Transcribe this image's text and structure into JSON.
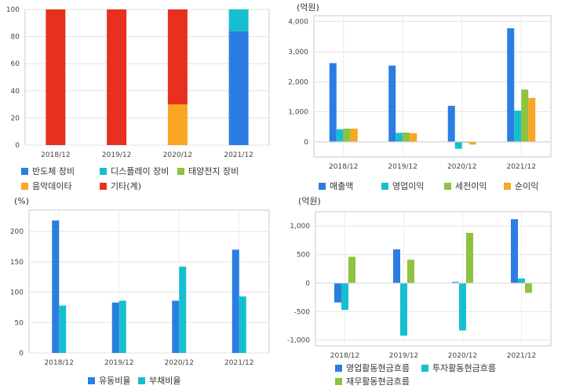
{
  "chart_data": [
    {
      "type": "bar",
      "stacked": true,
      "categories": [
        "2018/12",
        "2019/12",
        "2020/12",
        "2021/12"
      ],
      "ylim": [
        0,
        100
      ],
      "yticks": [
        0,
        20,
        40,
        60,
        80,
        100
      ],
      "unit_label": "",
      "series": [
        {
          "name": "반도체 장비",
          "color": "#2b7de1",
          "values": [
            0,
            0,
            0,
            84
          ]
        },
        {
          "name": "디스플레이 장비",
          "color": "#16bfd0",
          "values": [
            0,
            0,
            0,
            16
          ]
        },
        {
          "name": "태양전지 장비",
          "color": "#8fc23f",
          "values": [
            0,
            0,
            0,
            0
          ]
        },
        {
          "name": "음악데이타",
          "color": "#f8a624",
          "values": [
            0,
            0,
            30,
            0
          ]
        },
        {
          "name": "기타(계)",
          "color": "#e8301f",
          "values": [
            100,
            100,
            70,
            0
          ]
        }
      ],
      "grid": true
    },
    {
      "type": "bar",
      "categories": [
        "2018/12",
        "2019/12",
        "2020/12",
        "2021/12"
      ],
      "ylim": [
        -500,
        4200
      ],
      "yticks": [
        0,
        1000,
        2000,
        3000,
        4000
      ],
      "ytick_labels": [
        "0",
        "1,000",
        "2,000",
        "3,000",
        "4,000"
      ],
      "unit_label": "(억원)",
      "series": [
        {
          "name": "매출액",
          "color": "#2b7de1",
          "values": [
            2620,
            2540,
            1200,
            3780
          ]
        },
        {
          "name": "영업이익",
          "color": "#16bfd0",
          "values": [
            420,
            300,
            -230,
            1040
          ]
        },
        {
          "name": "세전이익",
          "color": "#8fc23f",
          "values": [
            440,
            310,
            -30,
            1740
          ]
        },
        {
          "name": "순이익",
          "color": "#f8a624",
          "values": [
            440,
            290,
            -90,
            1460
          ]
        }
      ],
      "grid": true
    },
    {
      "type": "bar",
      "categories": [
        "2018/12",
        "2019/12",
        "2020/12",
        "2021/12"
      ],
      "ylim": [
        0,
        235
      ],
      "yticks": [
        0,
        50,
        100,
        150,
        200
      ],
      "unit_label": "(%)",
      "series": [
        {
          "name": "유동비율",
          "color": "#2b7de1",
          "values": [
            218,
            83,
            86,
            170
          ]
        },
        {
          "name": "부채비율",
          "color": "#16bfd0",
          "values": [
            78,
            86,
            142,
            93
          ]
        }
      ],
      "grid": true
    },
    {
      "type": "bar",
      "categories": [
        "2018/12",
        "2019/12",
        "2020/12",
        "2021/12"
      ],
      "ylim": [
        -1100,
        1250
      ],
      "yticks": [
        -1000,
        -500,
        0,
        500,
        1000
      ],
      "ytick_labels": [
        "-1,000",
        "-500",
        "0",
        "500",
        "1,000"
      ],
      "unit_label": "(억원)",
      "series": [
        {
          "name": "영업활동현금흐름",
          "color": "#2b7de1",
          "values": [
            -340,
            590,
            20,
            1120
          ]
        },
        {
          "name": "투자활동현금흐름",
          "color": "#16bfd0",
          "values": [
            -470,
            -920,
            -830,
            80
          ]
        },
        {
          "name": "재무활동현금흐름",
          "color": "#8fc23f",
          "values": [
            460,
            410,
            880,
            -170
          ]
        }
      ],
      "grid": true
    }
  ]
}
